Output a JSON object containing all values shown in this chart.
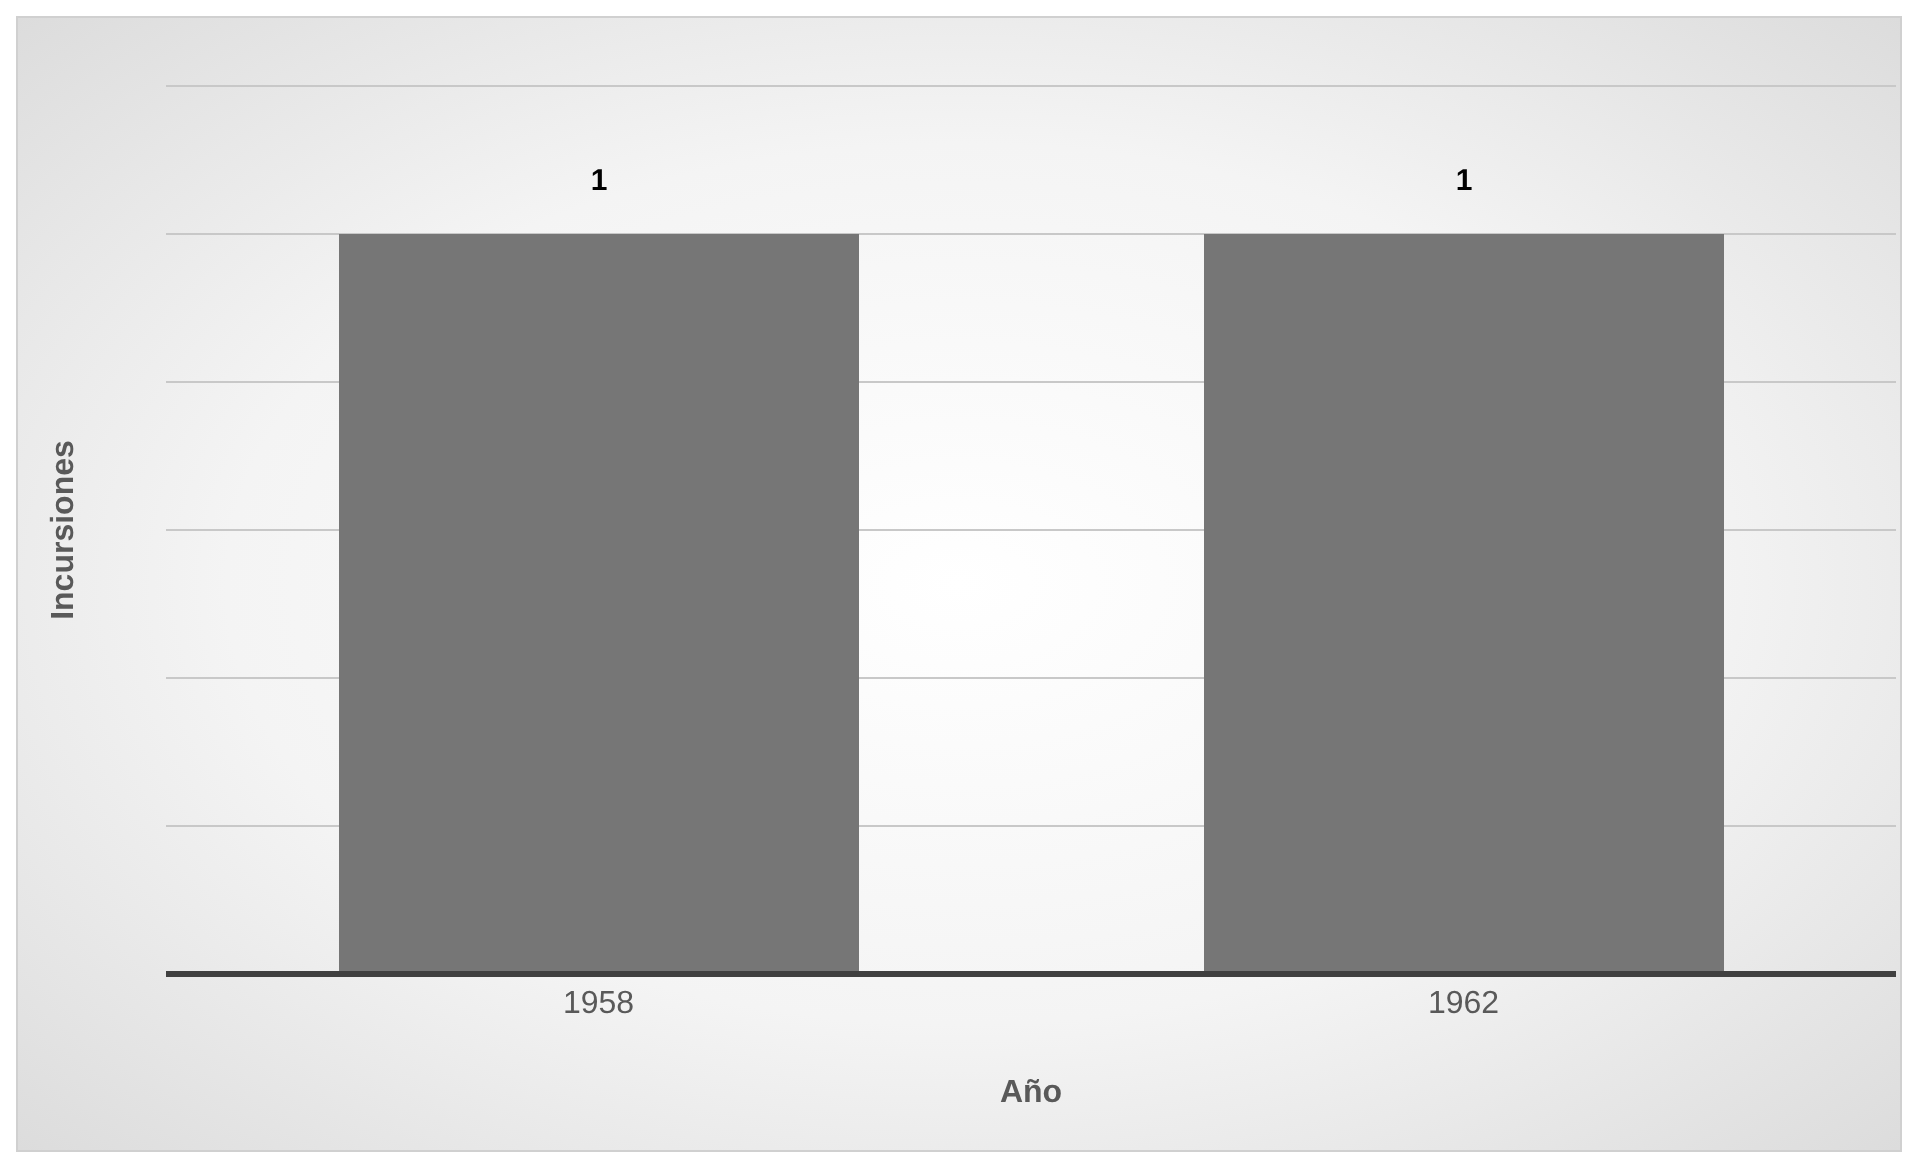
{
  "chart_data": {
    "type": "bar",
    "xlabel": "Año",
    "ylabel": "Incursiones",
    "categories": [
      "1958",
      "1962"
    ],
    "values": [
      1,
      1
    ],
    "color": "#767676",
    "tick_labels": "x",
    "grid": "y",
    "data_labels": true,
    "legend": false
  }
}
